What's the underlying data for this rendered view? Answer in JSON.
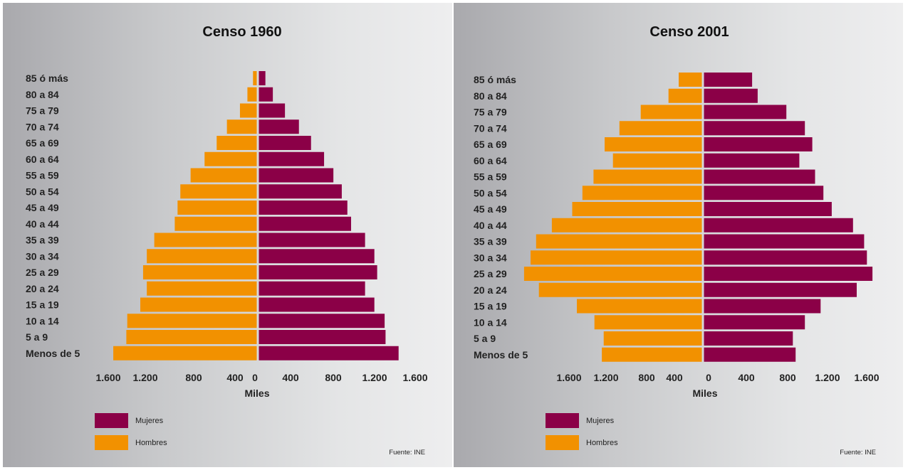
{
  "colors": {
    "mujeres": "#8b0047",
    "hombres": "#f29100"
  },
  "chart_data": [
    {
      "type": "bar",
      "orientation": "horizontal",
      "subtype": "population-pyramid",
      "title": "Censo 1960",
      "categories": [
        "85 ó más",
        "80 a 84",
        "75 a 79",
        "70 a 74",
        "65 a 69",
        "60 a 64",
        "55 a 59",
        "50 a 54",
        "45 a 49",
        "40 a 44",
        "35 a 39",
        "30 a 34",
        "25 a 29",
        "20 a 24",
        "15 a 19",
        "10 a 14",
        "5 a 9",
        "Menos de 5"
      ],
      "series": [
        {
          "name": "Mujeres",
          "side": "right",
          "values": [
            70,
            150,
            280,
            430,
            560,
            700,
            800,
            890,
            950,
            990,
            1140,
            1240,
            1270,
            1140,
            1240,
            1350,
            1360,
            1500
          ]
        },
        {
          "name": "Hombres",
          "side": "left",
          "values": [
            40,
            100,
            180,
            320,
            430,
            560,
            710,
            820,
            850,
            880,
            1100,
            1180,
            1220,
            1180,
            1250,
            1390,
            1400,
            1540
          ]
        }
      ],
      "xlabel": "Miles",
      "tick_labels": [
        "1.600",
        "1.200",
        "800",
        "400",
        "0",
        "400",
        "800",
        "1.200",
        "1.600"
      ],
      "xlim": [
        -1600,
        1600
      ],
      "legend": [
        "Mujeres",
        "Hombres"
      ],
      "legend_position": "bottom-left",
      "source": "Fuente: INE"
    },
    {
      "type": "bar",
      "orientation": "horizontal",
      "subtype": "population-pyramid",
      "title": "Censo 2001",
      "categories": [
        "85 ó más",
        "80 a 84",
        "75 a 79",
        "70 a 74",
        "65 a 69",
        "60 a 64",
        "55 a 59",
        "50 a 54",
        "45 a 49",
        "40 a 44",
        "35 a 39",
        "30 a 34",
        "25 a 29",
        "20 a 24",
        "15 a 19",
        "10 a 14",
        "5 a 9",
        "Menos de 5"
      ],
      "series": [
        {
          "name": "Mujeres",
          "side": "right",
          "values": [
            520,
            580,
            890,
            1090,
            1170,
            1030,
            1200,
            1290,
            1380,
            1610,
            1730,
            1760,
            1820,
            1650,
            1260,
            1090,
            960,
            990
          ]
        },
        {
          "name": "Hombres",
          "side": "left",
          "values": [
            250,
            360,
            660,
            890,
            1050,
            960,
            1170,
            1290,
            1400,
            1620,
            1790,
            1850,
            1920,
            1760,
            1350,
            1160,
            1060,
            1080
          ]
        }
      ],
      "xlabel": "Miles",
      "tick_labels": [
        "1.600",
        "1.200",
        "800",
        "400",
        "0",
        "400",
        "800",
        "1.200",
        "1.600"
      ],
      "xlim": [
        -2200,
        2200
      ],
      "legend": [
        "Mujeres",
        "Hombres"
      ],
      "legend_position": "bottom-left",
      "source": "Fuente: INE"
    }
  ]
}
